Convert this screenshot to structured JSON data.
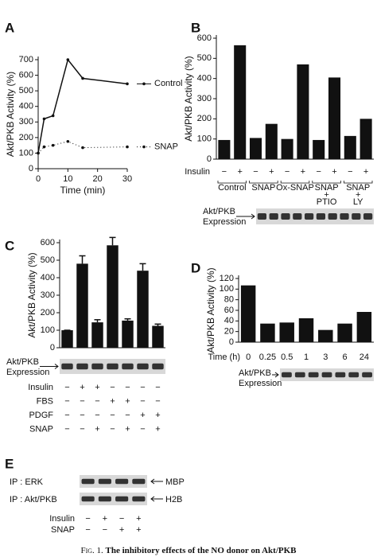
{
  "chart_data": [
    {
      "type": "line",
      "panel": "A",
      "ylabel": "Akt/PKB Activity (%)",
      "xlabel": "Time (min)",
      "x": [
        0,
        2,
        5,
        10,
        15,
        30
      ],
      "xlim": [
        0,
        30
      ],
      "xticks": [
        0,
        10,
        20,
        30
      ],
      "ylim": [
        0,
        700
      ],
      "yticks": [
        0,
        100,
        200,
        300,
        400,
        500,
        600,
        700
      ],
      "series": [
        {
          "name": "Control",
          "color": "#111111",
          "values": [
            100,
            320,
            340,
            700,
            580,
            545
          ]
        },
        {
          "name": "SNAP",
          "color": "#111111",
          "values": [
            100,
            140,
            150,
            175,
            135,
            140
          ]
        }
      ]
    },
    {
      "type": "bar",
      "panel": "B",
      "ylabel": "Akt/PKB Activity (%)",
      "color": "#111111",
      "ylim": [
        0,
        600
      ],
      "yticks": [
        0,
        100,
        200,
        300,
        400,
        500,
        600
      ],
      "values": [
        95,
        565,
        105,
        175,
        100,
        470,
        95,
        405,
        115,
        200
      ],
      "rows": [
        {
          "name": "Insulin",
          "values": [
            "−",
            "+",
            "−",
            "+",
            "−",
            "+",
            "−",
            "+",
            "−",
            "+"
          ]
        }
      ],
      "groups": [
        [
          "Control"
        ],
        [
          "SNAP"
        ],
        [
          "Ox-SNAP"
        ],
        [
          "SNAP",
          "+",
          "PTIO"
        ],
        [
          "SNAP",
          "+",
          "LY"
        ]
      ],
      "blot_label": [
        "Akt/PKB",
        "Expression"
      ]
    },
    {
      "type": "bar",
      "panel": "C",
      "ylabel": "Akt/PKB Activity (%)",
      "color": "#111111",
      "ylim": [
        0,
        600
      ],
      "yticks": [
        0,
        100,
        200,
        300,
        400,
        500,
        600
      ],
      "values": [
        100,
        480,
        145,
        585,
        155,
        440,
        125
      ],
      "errors": [
        0,
        45,
        15,
        45,
        10,
        40,
        10
      ],
      "blot_label": [
        "Akt/PKB",
        "Expression"
      ],
      "rows": [
        {
          "name": "Insulin",
          "values": [
            "−",
            "+",
            "+",
            "−",
            "−",
            "−",
            "−"
          ]
        },
        {
          "name": "FBS",
          "values": [
            "−",
            "−",
            "−",
            "+",
            "+",
            "−",
            "−"
          ]
        },
        {
          "name": "PDGF",
          "values": [
            "−",
            "−",
            "−",
            "−",
            "−",
            "+",
            "+"
          ]
        },
        {
          "name": "SNAP",
          "values": [
            "−",
            "−",
            "+",
            "−",
            "+",
            "−",
            "+"
          ]
        }
      ]
    },
    {
      "type": "bar",
      "panel": "D",
      "ylabel": "Akt/PKB Activity (%)",
      "color": "#111111",
      "xlabel": "Time (h)",
      "categories": [
        "0",
        "0.25",
        "0.5",
        "1",
        "3",
        "6",
        "24"
      ],
      "values": [
        107,
        35,
        37,
        45,
        23,
        35,
        57
      ],
      "ylim": [
        0,
        120
      ],
      "yticks": [
        0,
        20,
        40,
        60,
        80,
        100,
        120
      ],
      "blot_label": [
        "Akt/PKB",
        "Expression"
      ]
    }
  ],
  "panel_e": {
    "panel": "E",
    "blots": [
      {
        "label": "IP : ERK",
        "band": "MBP"
      },
      {
        "label": "IP : Akt/PKB",
        "band": "H2B"
      }
    ],
    "conditions": [
      {
        "name": "Insulin",
        "values": [
          "−",
          "+",
          "−",
          "+"
        ]
      },
      {
        "name": "SNAP",
        "values": [
          "−",
          "−",
          "+",
          "+"
        ]
      }
    ]
  },
  "caption": {
    "fig": "Fig. 1.",
    "text": "The inhibitory effects of the NO donor on Akt/PKB"
  }
}
